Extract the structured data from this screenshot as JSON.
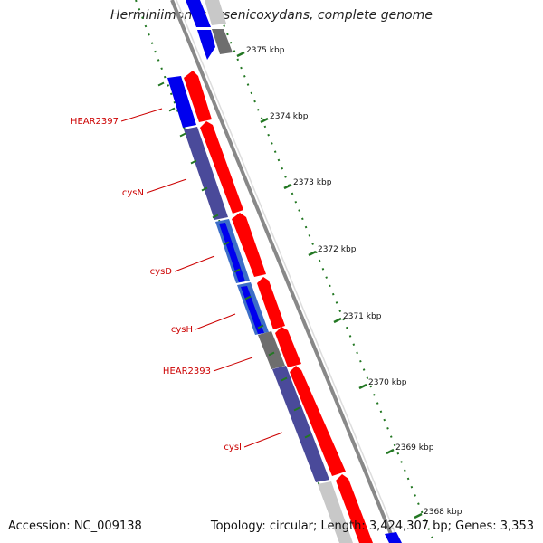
{
  "title": "Herminiimonas arsenicoxydans, complete genome",
  "accession": "Accession: NC_009138",
  "summary": "Topology: circular; Length: 3,424,307 bp; Genes: 3,353",
  "colors": {
    "forward": "#ff0000",
    "reverse": "#0000ee",
    "reverse_muted": "#4a4a9a",
    "reverse_light": "#3c6ec8",
    "grey_dark": "#6e6e6e",
    "grey_light": "#c8c8c8",
    "ruler": "#227722",
    "label": "#cc0000",
    "backbone": "#888888"
  },
  "ticks": [
    {
      "label": "2375 kbp"
    },
    {
      "label": "2374 kbp"
    },
    {
      "label": "2373 kbp"
    },
    {
      "label": "2372 kbp"
    },
    {
      "label": "2371 kbp"
    },
    {
      "label": "2370 kbp"
    },
    {
      "label": "2369 kbp"
    },
    {
      "label": "2368 kbp"
    }
  ],
  "genes": [
    {
      "label": "HEAR2397"
    },
    {
      "label": "cysN"
    },
    {
      "label": "cysD"
    },
    {
      "label": "cysH"
    },
    {
      "label": "HEAR2393"
    },
    {
      "label": "cysI"
    }
  ]
}
